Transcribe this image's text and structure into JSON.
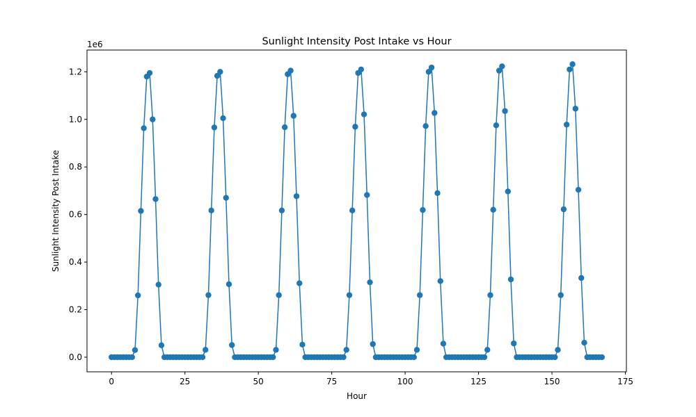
{
  "chart_data": {
    "type": "line",
    "title": "Sunlight Intensity Post Intake vs Hour",
    "xlabel": "Hour",
    "ylabel": "Sunlight Intensity Post Intake",
    "offset_text": "1e6",
    "xlim": [
      -8.35,
      175.35
    ],
    "ylim": [
      -0.0615,
      1.2915
    ],
    "xticks": [
      0,
      25,
      50,
      75,
      100,
      125,
      150,
      175
    ],
    "yticks": [
      0.0,
      0.2,
      0.4,
      0.6,
      0.8,
      1.0,
      1.2
    ],
    "ytick_labels": [
      "0.0",
      "0.2",
      "0.4",
      "0.6",
      "0.8",
      "1.0",
      "1.2"
    ],
    "grid": false,
    "marker": "circle",
    "color": "#1f77b4",
    "x_start": 0,
    "x_step": 1,
    "values": [
      0,
      0,
      0,
      0,
      0,
      0,
      0,
      0,
      0.03,
      0.26,
      0.615,
      0.963,
      1.18,
      1.195,
      1.0,
      0.665,
      0.305,
      0.05,
      0,
      0,
      0,
      0,
      0,
      0,
      0,
      0,
      0,
      0,
      0,
      0,
      0,
      0,
      0.031,
      0.261,
      0.617,
      0.966,
      1.183,
      1.2,
      1.005,
      0.67,
      0.307,
      0.051,
      0,
      0,
      0,
      0,
      0,
      0,
      0,
      0,
      0,
      0,
      0,
      0,
      0,
      0,
      0.031,
      0.261,
      0.617,
      0.967,
      1.19,
      1.205,
      1.015,
      0.677,
      0.311,
      0.053,
      0,
      0,
      0,
      0,
      0,
      0,
      0,
      0,
      0,
      0,
      0,
      0,
      0,
      0,
      0.031,
      0.261,
      0.617,
      0.969,
      1.195,
      1.21,
      1.021,
      0.682,
      0.315,
      0.055,
      0,
      0,
      0,
      0,
      0,
      0,
      0,
      0,
      0,
      0,
      0,
      0,
      0,
      0,
      0.031,
      0.261,
      0.619,
      0.972,
      1.2,
      1.218,
      1.027,
      0.69,
      0.32,
      0.057,
      0,
      0,
      0,
      0,
      0,
      0,
      0,
      0,
      0,
      0,
      0,
      0,
      0,
      0,
      0.031,
      0.261,
      0.62,
      0.975,
      1.205,
      1.223,
      1.035,
      0.697,
      0.327,
      0.058,
      0,
      0,
      0,
      0,
      0,
      0,
      0,
      0,
      0,
      0,
      0,
      0,
      0,
      0,
      0.031,
      0.261,
      0.622,
      0.978,
      1.21,
      1.232,
      1.045,
      0.704,
      0.333,
      0.061,
      0,
      0,
      0,
      0,
      0,
      0
    ]
  }
}
